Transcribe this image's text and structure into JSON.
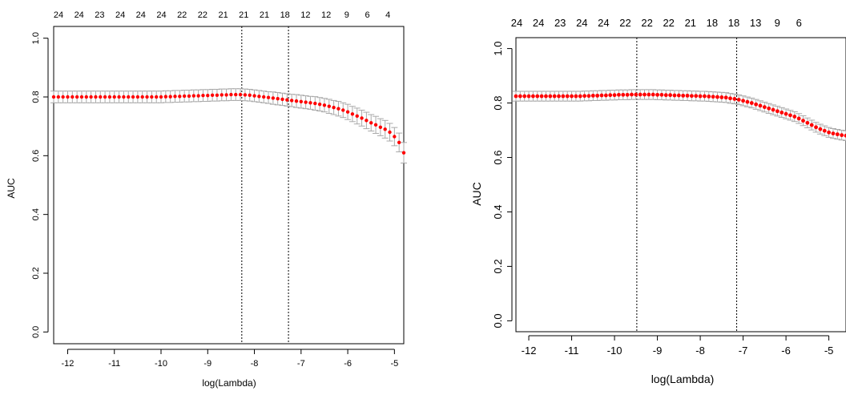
{
  "chart_data": [
    {
      "type": "scatter",
      "xlabel": "log(Lambda)",
      "ylabel": "AUC",
      "xlim": [
        -12.3,
        -4.8
      ],
      "ylim": [
        -0.04,
        1.04
      ],
      "xticks": [
        -12,
        -11,
        -10,
        -9,
        -8,
        -7,
        -6,
        -5
      ],
      "yticks": [
        0.0,
        0.2,
        0.4,
        0.6,
        0.8,
        1.0
      ],
      "top_labels": [
        "24",
        "24",
        "23",
        "24",
        "24",
        "24",
        "22",
        "22",
        "21",
        "21",
        "21",
        "18",
        "12",
        "12",
        "9",
        "6",
        "4"
      ],
      "vlines": [
        -8.27,
        -7.27
      ],
      "grid": false,
      "series_color": "#ff0000",
      "errbar_color": "#a9a9a9",
      "x": [
        -12.3,
        -12.2,
        -12.1,
        -12.0,
        -11.9,
        -11.8,
        -11.7,
        -11.6,
        -11.5,
        -11.4,
        -11.3,
        -11.2,
        -11.1,
        -11.0,
        -10.9,
        -10.8,
        -10.7,
        -10.6,
        -10.5,
        -10.4,
        -10.3,
        -10.2,
        -10.1,
        -10.0,
        -9.9,
        -9.8,
        -9.7,
        -9.6,
        -9.5,
        -9.4,
        -9.3,
        -9.2,
        -9.1,
        -9.0,
        -8.9,
        -8.8,
        -8.7,
        -8.6,
        -8.5,
        -8.4,
        -8.3,
        -8.2,
        -8.1,
        -8.0,
        -7.9,
        -7.8,
        -7.7,
        -7.6,
        -7.5,
        -7.4,
        -7.3,
        -7.2,
        -7.1,
        -7.0,
        -6.9,
        -6.8,
        -6.7,
        -6.6,
        -6.5,
        -6.4,
        -6.3,
        -6.2,
        -6.1,
        -6.0,
        -5.9,
        -5.8,
        -5.7,
        -5.6,
        -5.5,
        -5.4,
        -5.3,
        -5.2,
        -5.1,
        -5.0,
        -4.9,
        -4.8
      ],
      "y": [
        0.8,
        0.8,
        0.8,
        0.8,
        0.8,
        0.8,
        0.8,
        0.8,
        0.8,
        0.8,
        0.8,
        0.8,
        0.8,
        0.8,
        0.8,
        0.8,
        0.8,
        0.8,
        0.8,
        0.8,
        0.8,
        0.8,
        0.8,
        0.8,
        0.801,
        0.801,
        0.802,
        0.802,
        0.803,
        0.803,
        0.804,
        0.804,
        0.805,
        0.805,
        0.806,
        0.806,
        0.807,
        0.807,
        0.808,
        0.808,
        0.808,
        0.807,
        0.806,
        0.804,
        0.802,
        0.8,
        0.798,
        0.796,
        0.794,
        0.792,
        0.79,
        0.788,
        0.786,
        0.784,
        0.782,
        0.78,
        0.778,
        0.775,
        0.772,
        0.768,
        0.764,
        0.76,
        0.755,
        0.749,
        0.742,
        0.735,
        0.728,
        0.72,
        0.712,
        0.705,
        0.697,
        0.69,
        0.68,
        0.665,
        0.645,
        0.61
      ],
      "err": [
        0.02,
        0.02,
        0.02,
        0.02,
        0.02,
        0.02,
        0.02,
        0.02,
        0.02,
        0.02,
        0.02,
        0.02,
        0.02,
        0.02,
        0.02,
        0.02,
        0.02,
        0.02,
        0.02,
        0.02,
        0.02,
        0.02,
        0.02,
        0.02,
        0.02,
        0.02,
        0.02,
        0.02,
        0.02,
        0.02,
        0.02,
        0.02,
        0.02,
        0.02,
        0.02,
        0.02,
        0.02,
        0.02,
        0.02,
        0.02,
        0.02,
        0.02,
        0.02,
        0.02,
        0.02,
        0.02,
        0.02,
        0.021,
        0.021,
        0.021,
        0.021,
        0.021,
        0.022,
        0.022,
        0.022,
        0.022,
        0.023,
        0.023,
        0.023,
        0.024,
        0.024,
        0.025,
        0.025,
        0.026,
        0.026,
        0.027,
        0.027,
        0.028,
        0.028,
        0.029,
        0.029,
        0.03,
        0.03,
        0.031,
        0.032,
        0.035
      ]
    },
    {
      "type": "scatter",
      "xlabel": "log(Lambda)",
      "ylabel": "AUC",
      "xlim": [
        -12.3,
        -4.6
      ],
      "ylim": [
        -0.04,
        1.04
      ],
      "xticks": [
        -12,
        -11,
        -10,
        -9,
        -8,
        -7,
        -6,
        -5
      ],
      "yticks": [
        0.0,
        0.2,
        0.4,
        0.6,
        0.8,
        1.0
      ],
      "top_labels": [
        "24",
        "24",
        "23",
        "24",
        "24",
        "22",
        "22",
        "22",
        "21",
        "18",
        "18",
        "13",
        "9",
        "6"
      ],
      "vlines": [
        -9.48,
        -7.15
      ],
      "grid": false,
      "series_color": "#ff0000",
      "errbar_color": "#a9a9a9",
      "x": [
        -12.3,
        -12.2,
        -12.1,
        -12.0,
        -11.9,
        -11.8,
        -11.7,
        -11.6,
        -11.5,
        -11.4,
        -11.3,
        -11.2,
        -11.1,
        -11.0,
        -10.9,
        -10.8,
        -10.7,
        -10.6,
        -10.5,
        -10.4,
        -10.3,
        -10.2,
        -10.1,
        -10.0,
        -9.9,
        -9.8,
        -9.7,
        -9.6,
        -9.5,
        -9.4,
        -9.3,
        -9.2,
        -9.1,
        -9.0,
        -8.9,
        -8.8,
        -8.7,
        -8.6,
        -8.5,
        -8.4,
        -8.3,
        -8.2,
        -8.1,
        -8.0,
        -7.9,
        -7.8,
        -7.7,
        -7.6,
        -7.5,
        -7.4,
        -7.3,
        -7.2,
        -7.1,
        -7.0,
        -6.9,
        -6.8,
        -6.7,
        -6.6,
        -6.5,
        -6.4,
        -6.3,
        -6.2,
        -6.1,
        -6.0,
        -5.9,
        -5.8,
        -5.7,
        -5.6,
        -5.5,
        -5.4,
        -5.3,
        -5.2,
        -5.1,
        -5.0,
        -4.9,
        -4.8,
        -4.7,
        -4.6
      ],
      "y": [
        0.825,
        0.825,
        0.825,
        0.825,
        0.825,
        0.825,
        0.825,
        0.825,
        0.825,
        0.825,
        0.825,
        0.825,
        0.825,
        0.825,
        0.825,
        0.825,
        0.826,
        0.826,
        0.827,
        0.827,
        0.828,
        0.828,
        0.829,
        0.829,
        0.83,
        0.83,
        0.83,
        0.831,
        0.831,
        0.831,
        0.831,
        0.831,
        0.831,
        0.83,
        0.83,
        0.829,
        0.829,
        0.828,
        0.828,
        0.827,
        0.827,
        0.826,
        0.826,
        0.825,
        0.825,
        0.824,
        0.823,
        0.822,
        0.821,
        0.82,
        0.817,
        0.815,
        0.812,
        0.808,
        0.804,
        0.8,
        0.795,
        0.79,
        0.785,
        0.78,
        0.775,
        0.77,
        0.765,
        0.76,
        0.755,
        0.75,
        0.743,
        0.735,
        0.727,
        0.719,
        0.711,
        0.704,
        0.698,
        0.692,
        0.688,
        0.685,
        0.682,
        0.68
      ],
      "err": [
        0.018,
        0.018,
        0.018,
        0.018,
        0.018,
        0.018,
        0.018,
        0.018,
        0.018,
        0.018,
        0.018,
        0.018,
        0.018,
        0.018,
        0.018,
        0.018,
        0.018,
        0.018,
        0.018,
        0.018,
        0.018,
        0.018,
        0.018,
        0.018,
        0.018,
        0.018,
        0.018,
        0.018,
        0.018,
        0.018,
        0.018,
        0.018,
        0.018,
        0.018,
        0.018,
        0.018,
        0.018,
        0.018,
        0.018,
        0.018,
        0.018,
        0.018,
        0.018,
        0.018,
        0.018,
        0.018,
        0.018,
        0.018,
        0.018,
        0.018,
        0.018,
        0.018,
        0.018,
        0.018,
        0.018,
        0.018,
        0.018,
        0.018,
        0.018,
        0.018,
        0.018,
        0.018,
        0.018,
        0.018,
        0.018,
        0.018,
        0.018,
        0.018,
        0.018,
        0.018,
        0.018,
        0.018,
        0.018,
        0.018,
        0.018,
        0.018,
        0.018,
        0.018
      ]
    }
  ]
}
